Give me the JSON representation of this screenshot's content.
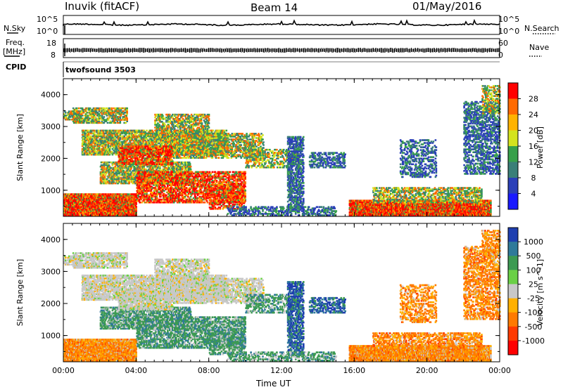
{
  "header": {
    "station": "Inuvik (fitACF)",
    "beam": "Beam 14",
    "date": "01/May/2016"
  },
  "noise_panel": {
    "left_label": "N.Sky",
    "right_label": "N.Search",
    "ticks_left": [
      "10^5",
      "10^0"
    ],
    "ticks_right": [
      "10^5",
      "10^0"
    ]
  },
  "freq_panel": {
    "left_label_1": "Freq.",
    "left_label_2": "[MHz]",
    "ticks_left": [
      "18",
      "8"
    ],
    "right_label": "Nave",
    "ticks_right": [
      "60",
      "0"
    ]
  },
  "cpid": {
    "label": "CPID",
    "value": "twofsound 3503"
  },
  "chart_data": [
    {
      "type": "heatmap",
      "title": "",
      "xlabel": "Time UT",
      "ylabel": "Slant Range [km]",
      "x_ticks": [
        "00:00",
        "04:00",
        "08:00",
        "12:00",
        "16:00",
        "20:00",
        "00:00"
      ],
      "y_ticks": [
        "1000",
        "2000",
        "3000",
        "4000"
      ],
      "colorbar": {
        "label": "Power [dB]",
        "ticks": [
          "28",
          "24",
          "20",
          "16",
          "12",
          "8",
          "4"
        ],
        "colors": [
          "#ff0000",
          "#ff6a00",
          "#ffb300",
          "#d4e31e",
          "#37a04a",
          "#3a7f78",
          "#2b40b8",
          "#1a1aff"
        ]
      }
    },
    {
      "type": "heatmap",
      "title": "",
      "xlabel": "Time UT",
      "ylabel": "Slant Range [km]",
      "x_ticks": [
        "00:00",
        "04:00",
        "08:00",
        "12:00",
        "16:00",
        "20:00",
        "00:00"
      ],
      "y_ticks": [
        "1000",
        "2000",
        "3000",
        "4000"
      ],
      "colorbar": {
        "label": "Velocity [m s^-1]",
        "ticks": [
          "1000",
          "500",
          "100",
          "25",
          "-25",
          "-100",
          "-500",
          "-1000"
        ],
        "colors": [
          "#1f3fb0",
          "#2f7a9a",
          "#3c9a52",
          "#6ad046",
          "#c8c8c8",
          "#ffb000",
          "#ff7a00",
          "#ff3a00",
          "#ff0000"
        ]
      }
    }
  ],
  "colors": {
    "axis": "#000000",
    "ground_scatter": "#b4b4b4",
    "trace": "#000000"
  }
}
